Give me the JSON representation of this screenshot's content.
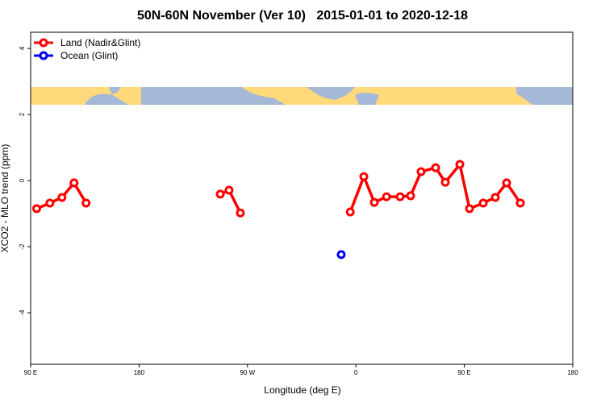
{
  "chart_data": {
    "type": "line",
    "title": "50N-60N November (Ver 10)   2015-01-01 to 2020-12-18",
    "x_label": "Longitude (deg E)",
    "y_label": "XCO2 - MLO trend (ppm)",
    "xlim": [
      90,
      540
    ],
    "xticks": [
      {
        "value": 90,
        "label": "90 E"
      },
      {
        "value": 180,
        "label": "180"
      },
      {
        "value": 270,
        "label": "90 W"
      },
      {
        "value": 360,
        "label": "0"
      },
      {
        "value": 450,
        "label": "90 E"
      },
      {
        "value": 540,
        "label": "180"
      }
    ],
    "ylim": [
      -5.56,
      4.49
    ],
    "yticks": [
      -4,
      -2,
      0,
      2,
      4
    ],
    "legend": "top-left",
    "series": [
      {
        "name": "Land (Nadir&Glint)",
        "color": "#ff0000",
        "x": [
          95,
          106,
          116,
          126,
          136,
          null,
          247.4,
          254.7,
          264.1,
          null,
          355.3,
          366.6,
          375.3,
          385.4,
          396.7,
          405.4,
          414.1,
          426.2,
          434.2,
          446.3,
          454.3,
          465.7,
          475.7,
          485.1,
          496.5
        ],
        "values": [
          -0.85,
          -0.68,
          -0.51,
          -0.07,
          -0.68,
          null,
          -0.41,
          -0.29,
          -0.98,
          null,
          -0.95,
          0.12,
          -0.66,
          -0.49,
          -0.49,
          -0.46,
          0.27,
          0.39,
          -0.05,
          0.49,
          -0.85,
          -0.68,
          -0.51,
          -0.07,
          -0.68
        ]
      },
      {
        "name": "Ocean (Glint)",
        "color": "#0000ff",
        "x": [
          347.8
        ],
        "values": [
          -2.24
        ]
      }
    ]
  }
}
